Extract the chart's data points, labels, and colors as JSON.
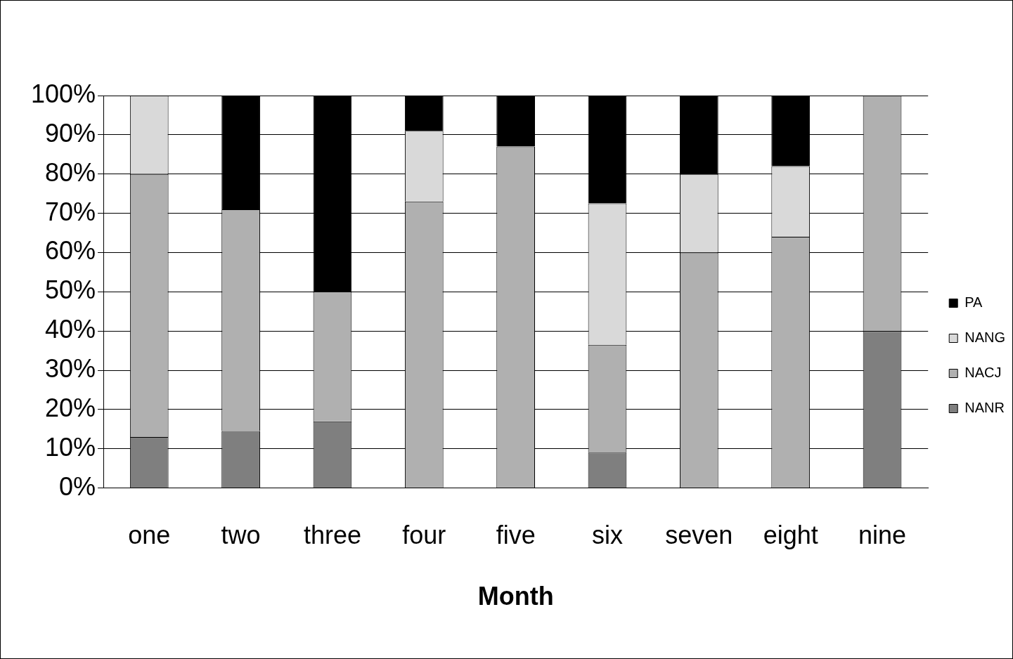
{
  "chart_data": {
    "type": "bar",
    "stacked": true,
    "xlabel": "Month",
    "categories": [
      "one",
      "two",
      "three",
      "four",
      "five",
      "six",
      "seven",
      "eight",
      "nine"
    ],
    "series": [
      {
        "name": "NANR",
        "color": "#7f7f7f",
        "values": [
          13,
          14.5,
          17,
          0,
          0,
          9,
          0,
          0,
          40
        ]
      },
      {
        "name": "NACJ",
        "color": "#b0b0b0",
        "values": [
          67,
          56.5,
          33,
          73,
          87,
          27.5,
          60,
          64,
          60
        ]
      },
      {
        "name": "NANG",
        "color": "#d9d9d9",
        "values": [
          20,
          0,
          0,
          18,
          0,
          36,
          20,
          18,
          0
        ]
      },
      {
        "name": "PA",
        "color": "#000000",
        "values": [
          0,
          29,
          50,
          9,
          13,
          27.5,
          20,
          18,
          0
        ]
      }
    ],
    "ylim": [
      0,
      100
    ],
    "yticks": [
      {
        "value": 0,
        "label": "0%"
      },
      {
        "value": 10,
        "label": "10%"
      },
      {
        "value": 20,
        "label": "20%"
      },
      {
        "value": 30,
        "label": "30%"
      },
      {
        "value": 40,
        "label": "40%"
      },
      {
        "value": 50,
        "label": "50%"
      },
      {
        "value": 60,
        "label": "60%"
      },
      {
        "value": 70,
        "label": "70%"
      },
      {
        "value": 80,
        "label": "80%"
      },
      {
        "value": 90,
        "label": "90%"
      },
      {
        "value": 100,
        "label": "100%"
      }
    ],
    "grid": "y",
    "legend": "right"
  }
}
